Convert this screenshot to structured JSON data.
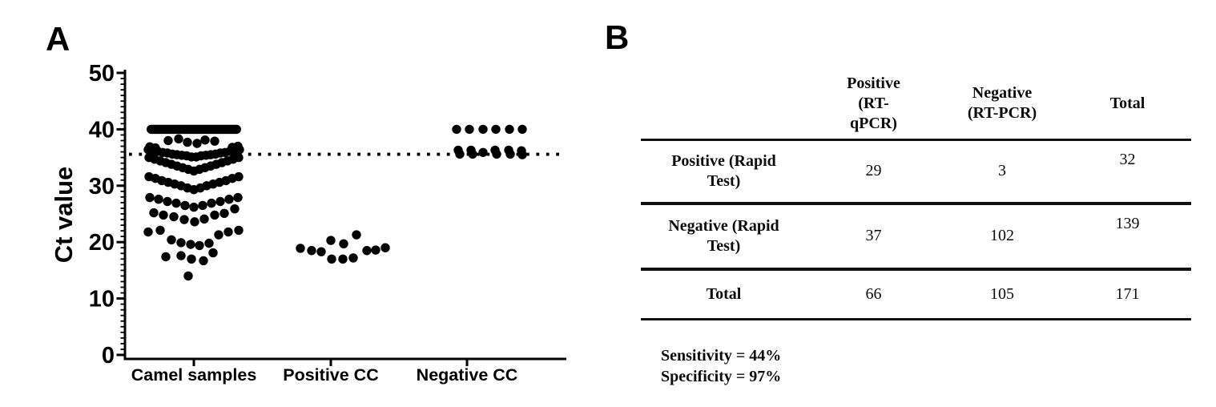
{
  "figure": {
    "panel_a_label": "A",
    "panel_b_label": "B"
  },
  "chart_data": {
    "type": "scatter",
    "subtype": "column-dot-plot",
    "title": "",
    "xlabel": "",
    "ylabel": "Ct value",
    "ylim": [
      0,
      50
    ],
    "yticks": [
      0,
      10,
      20,
      30,
      40,
      50
    ],
    "minor_tick_step": 1,
    "grid": false,
    "cutoff_line_y": 36,
    "cutoff_line_style": "dotted",
    "point_color": "#000000",
    "categories": [
      "Camel samples",
      "Positive CC",
      "Negative CC"
    ],
    "series": [
      {
        "name": "Camel samples",
        "censored_bar_at": 40,
        "censored_bar_half_width": 59,
        "points": [
          [
            -32,
            38.0
          ],
          [
            -19,
            38.3
          ],
          [
            -8,
            37.7
          ],
          [
            4,
            37.5
          ],
          [
            14,
            38.1
          ],
          [
            26,
            37.9
          ],
          [
            -55,
            36.9
          ],
          [
            -48,
            36.7
          ],
          [
            48,
            36.8
          ],
          [
            55,
            37.0
          ],
          [
            -57,
            36.4
          ],
          [
            -51,
            36.2
          ],
          [
            -45,
            36.1
          ],
          [
            -39,
            35.9
          ],
          [
            -33,
            35.8
          ],
          [
            -27,
            35.6
          ],
          [
            -21,
            35.5
          ],
          [
            -15,
            35.4
          ],
          [
            -9,
            35.3
          ],
          [
            -3,
            35.1
          ],
          [
            3,
            35.1
          ],
          [
            9,
            35.3
          ],
          [
            15,
            35.4
          ],
          [
            21,
            35.5
          ],
          [
            27,
            35.6
          ],
          [
            33,
            35.8
          ],
          [
            39,
            35.9
          ],
          [
            45,
            36.1
          ],
          [
            51,
            36.2
          ],
          [
            57,
            36.4
          ],
          [
            -56,
            35.0
          ],
          [
            -49,
            34.7
          ],
          [
            -42,
            34.4
          ],
          [
            -35,
            34.1
          ],
          [
            -28,
            33.8
          ],
          [
            -21,
            33.5
          ],
          [
            -14,
            33.2
          ],
          [
            -7,
            32.9
          ],
          [
            0,
            32.6
          ],
          [
            7,
            32.9
          ],
          [
            14,
            33.2
          ],
          [
            21,
            33.5
          ],
          [
            28,
            33.8
          ],
          [
            35,
            34.1
          ],
          [
            42,
            34.4
          ],
          [
            49,
            34.7
          ],
          [
            56,
            35.0
          ],
          [
            -56,
            31.6
          ],
          [
            -48,
            31.3
          ],
          [
            -40,
            30.9
          ],
          [
            -32,
            30.6
          ],
          [
            -24,
            30.3
          ],
          [
            -16,
            30.0
          ],
          [
            -8,
            29.6
          ],
          [
            0,
            29.3
          ],
          [
            8,
            29.6
          ],
          [
            16,
            30.0
          ],
          [
            24,
            30.3
          ],
          [
            32,
            30.6
          ],
          [
            40,
            30.9
          ],
          [
            48,
            31.3
          ],
          [
            56,
            31.6
          ],
          [
            -55,
            27.9
          ],
          [
            -44,
            27.6
          ],
          [
            -33,
            27.2
          ],
          [
            -22,
            26.9
          ],
          [
            -11,
            26.5
          ],
          [
            0,
            26.2
          ],
          [
            11,
            26.5
          ],
          [
            22,
            26.9
          ],
          [
            33,
            27.2
          ],
          [
            44,
            27.6
          ],
          [
            55,
            27.9
          ],
          [
            -50,
            25.2
          ],
          [
            -38,
            24.8
          ],
          [
            -25,
            24.5
          ],
          [
            -12,
            24.0
          ],
          [
            1,
            23.6
          ],
          [
            13,
            24.1
          ],
          [
            26,
            24.8
          ],
          [
            38,
            25.1
          ],
          [
            51,
            25.9
          ],
          [
            -57,
            21.8
          ],
          [
            -42,
            22.1
          ],
          [
            -28,
            20.4
          ],
          [
            -16,
            19.9
          ],
          [
            -4,
            19.6
          ],
          [
            7,
            19.4
          ],
          [
            19,
            19.8
          ],
          [
            31,
            21.3
          ],
          [
            43,
            21.8
          ],
          [
            56,
            22.1
          ],
          [
            -35,
            17.4
          ],
          [
            -16,
            17.6
          ],
          [
            -3,
            17.0
          ],
          [
            12,
            16.7
          ],
          [
            24,
            18.1
          ],
          [
            -7,
            14.0
          ]
        ]
      },
      {
        "name": "Positive CC",
        "points": [
          [
            32,
            21.3
          ],
          [
            0,
            20.3
          ],
          [
            16,
            19.7
          ],
          [
            -38,
            18.9
          ],
          [
            -24,
            18.5
          ],
          [
            -12,
            18.3
          ],
          [
            45,
            18.5
          ],
          [
            56,
            18.6
          ],
          [
            68,
            19.0
          ],
          [
            1,
            17.0
          ],
          [
            15,
            17.0
          ],
          [
            28,
            17.2
          ]
        ]
      },
      {
        "name": "Negative CC",
        "points": [
          [
            -13,
            40
          ],
          [
            3,
            40
          ],
          [
            20,
            40
          ],
          [
            36,
            40
          ],
          [
            53,
            40
          ],
          [
            69,
            40
          ],
          [
            -11,
            36.3
          ],
          [
            5,
            36.3
          ],
          [
            20,
            35.9
          ],
          [
            35,
            36.3
          ],
          [
            52,
            36.3
          ],
          [
            68,
            36.2
          ],
          [
            -9,
            35.6
          ],
          [
            7,
            35.6
          ],
          [
            37,
            35.6
          ],
          [
            54,
            35.6
          ],
          [
            69,
            35.5
          ]
        ]
      }
    ]
  },
  "table": {
    "col_headers": [
      [
        ""
      ],
      [
        "Positive",
        "(RT-",
        "qPCR)"
      ],
      [
        "Negative",
        "(RT-PCR)"
      ],
      [
        "Total"
      ]
    ],
    "rows": [
      {
        "label_lines": [
          "Positive (Rapid",
          "Test)"
        ],
        "values": [
          "29",
          "3",
          "32"
        ]
      },
      {
        "label_lines": [
          "Negative (Rapid",
          "Test)"
        ],
        "values": [
          "37",
          "102",
          "139"
        ]
      },
      {
        "label_lines": [
          "Total"
        ],
        "values": [
          "66",
          "105",
          "171"
        ],
        "is_total": true
      }
    ],
    "footer_lines": [
      "Sensitivity = 44%",
      "Specificity = 97%"
    ]
  }
}
